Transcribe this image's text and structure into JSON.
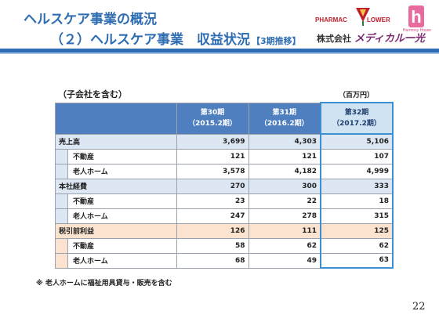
{
  "header": {
    "title_line1": "ヘルスケア事業の概況",
    "title_line2": "（２）ヘルスケア事業　収益状況",
    "title_suffix": "【3期推移】",
    "logo_pharmac": "PHARMAC",
    "logo_lower": "LOWER",
    "logo_hh_letter": "h",
    "logo_hh_caption": "Harmony House",
    "company_prefix": "株式会社",
    "company_brand": "メディカル一光"
  },
  "table_notes": {
    "scope": "（子会社を含む）",
    "unit": "（百万円）"
  },
  "columns": [
    {
      "label": "第30期",
      "sub": "（2015.2期）"
    },
    {
      "label": "第31期",
      "sub": "（2016.2期）"
    },
    {
      "label": "第32期",
      "sub": "（2017.2期）"
    }
  ],
  "rows": [
    {
      "label": "売上高",
      "values": [
        "3,699",
        "4,303",
        "5,106"
      ]
    },
    {
      "label": "不動産",
      "values": [
        "121",
        "121",
        "107"
      ]
    },
    {
      "label": "老人ホーム",
      "values": [
        "3,578",
        "4,182",
        "4,999"
      ]
    },
    {
      "label": "本社経費",
      "values": [
        "270",
        "300",
        "333"
      ]
    },
    {
      "label": "不動産",
      "values": [
        "23",
        "22",
        "18"
      ]
    },
    {
      "label": "老人ホーム",
      "values": [
        "247",
        "278",
        "315"
      ]
    },
    {
      "label": "税引前利益",
      "values": [
        "126",
        "111",
        "125"
      ]
    },
    {
      "label": "不動産",
      "values": [
        "58",
        "62",
        "62"
      ]
    },
    {
      "label": "老人ホーム",
      "values": [
        "68",
        "49",
        "63"
      ]
    }
  ],
  "footnote": "※ 老人ホームに福祉用具貸与・販売を含む",
  "page_number": "22",
  "colors": {
    "title": "#2f6db2",
    "header_fill": "#4f7fbf",
    "highlight_fill": "#cfe3f3",
    "group_blue": "#dde7f3",
    "group_peach": "#fbe3cf"
  }
}
